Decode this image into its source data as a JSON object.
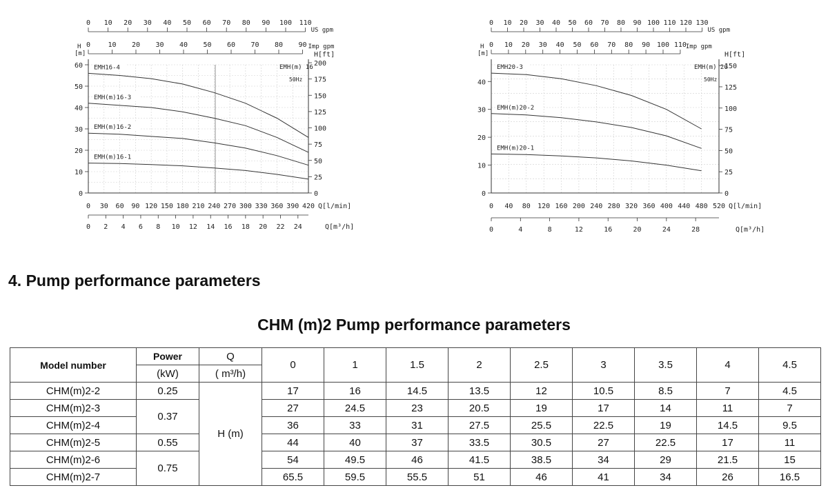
{
  "charts": [
    {
      "id": "left",
      "us_gpm_ticks": [
        "0",
        "10",
        "20",
        "30",
        "40",
        "50",
        "60",
        "70",
        "80",
        "90",
        "100",
        "110"
      ],
      "us_gpm_label": "US gpm",
      "imp_gpm_ticks": [
        "0",
        "10",
        "20",
        "30",
        "40",
        "50",
        "60",
        "70",
        "80",
        "90"
      ],
      "imp_gpm_label": "Imp gpm",
      "h_ft_label": "H[ft]",
      "h_label": "H",
      "m_label": "[m]",
      "h_ticks": [
        "0",
        "10",
        "20",
        "30",
        "40",
        "50",
        "60"
      ],
      "ft_ticks": [
        "0",
        "25",
        "50",
        "75",
        "100",
        "125",
        "150",
        "175",
        "200"
      ],
      "q_lmin_ticks": [
        "0",
        "30",
        "60",
        "90",
        "120",
        "150",
        "180",
        "210",
        "240",
        "270",
        "300",
        "330",
        "360",
        "390",
        "420"
      ],
      "q_lmin_label": "Q[l/min]",
      "q_m3h_ticks": [
        "0",
        "2",
        "4",
        "6",
        "8",
        "10",
        "12",
        "14",
        "16",
        "18",
        "20",
        "22",
        "24"
      ],
      "q_m3h_label": "Q[m³/h]",
      "model_label": "EMH(m) 16",
      "freq_label": "50Hz",
      "chart_data": {
        "type": "line",
        "xlabel": "Q[l/min]",
        "ylabel": "H [m]",
        "xlim": [
          0,
          420
        ],
        "ylim": [
          0,
          60
        ],
        "grid": true,
        "series": [
          {
            "name": "EMH16-4",
            "x": [
              0,
              60,
              120,
              180,
              240,
              300,
              360,
              420
            ],
            "y": [
              56,
              55,
              53.5,
              51,
              47,
              42,
              35,
              26
            ]
          },
          {
            "name": "EMH(m)16-3",
            "x": [
              0,
              60,
              120,
              180,
              240,
              300,
              360,
              420
            ],
            "y": [
              42,
              41,
              40,
              38,
              35,
              31.5,
              26,
              19
            ]
          },
          {
            "name": "EMH(m)16-2",
            "x": [
              0,
              60,
              120,
              180,
              240,
              300,
              360,
              420
            ],
            "y": [
              28,
              27.5,
              26.5,
              25.5,
              23.5,
              21,
              17.5,
              13
            ]
          },
          {
            "name": "EMH(m)16-1",
            "x": [
              0,
              60,
              120,
              180,
              240,
              300,
              360,
              420
            ],
            "y": [
              14,
              13.8,
              13.3,
              12.7,
              11.7,
              10.5,
              8.7,
              6.5
            ]
          }
        ]
      }
    },
    {
      "id": "right",
      "us_gpm_ticks": [
        "0",
        "10",
        "20",
        "30",
        "40",
        "50",
        "60",
        "70",
        "80",
        "90",
        "100",
        "110",
        "120",
        "130"
      ],
      "us_gpm_label": "US gpm",
      "imp_gpm_ticks": [
        "0",
        "10",
        "20",
        "30",
        "40",
        "50",
        "60",
        "70",
        "80",
        "90",
        "100",
        "110"
      ],
      "imp_gpm_label": "Imp gpm",
      "h_ft_label": "H[ft]",
      "h_label": "H",
      "m_label": "[m]",
      "h_ticks": [
        "0",
        "10",
        "20",
        "30",
        "40"
      ],
      "ft_ticks": [
        "0",
        "25",
        "50",
        "75",
        "100",
        "125",
        "150"
      ],
      "q_lmin_ticks": [
        "0",
        "40",
        "80",
        "120",
        "160",
        "200",
        "240",
        "280",
        "320",
        "360",
        "400",
        "440",
        "480",
        "520"
      ],
      "q_lmin_label": "Q[l/min]",
      "q_m3h_ticks": [
        "0",
        "4",
        "8",
        "12",
        "16",
        "20",
        "24",
        "28"
      ],
      "q_m3h_label": "Q[m³/h]",
      "model_label": "EMH(m) 20",
      "freq_label": "50Hz",
      "chart_data": {
        "type": "line",
        "xlabel": "Q[l/min]",
        "ylabel": "H [m]",
        "xlim": [
          0,
          520
        ],
        "ylim": [
          0,
          46
        ],
        "grid": true,
        "series": [
          {
            "name": "EMH20-3",
            "x": [
              0,
              80,
              160,
              240,
              320,
              400,
              480
            ],
            "y": [
              43,
              42.5,
              41,
              38.5,
              35,
              30,
              23
            ]
          },
          {
            "name": "EMH(m)20-2",
            "x": [
              0,
              80,
              160,
              240,
              320,
              400,
              480
            ],
            "y": [
              28.5,
              28,
              27,
              25.5,
              23.5,
              20.5,
              16
            ]
          },
          {
            "name": "EMH(m)20-1",
            "x": [
              0,
              80,
              160,
              240,
              320,
              400,
              480
            ],
            "y": [
              14,
              13.8,
              13.3,
              12.6,
              11.5,
              10,
              8
            ]
          }
        ]
      }
    }
  ],
  "section_title": "4. Pump performance parameters",
  "table_title": "CHM (m)2 Pump performance parameters",
  "table": {
    "model_header": "Model number",
    "power_header": "Power",
    "power_unit": "(kW)",
    "q_header": "Q",
    "q_unit": "( m³/h)",
    "h_label": "H (m)",
    "flows": [
      "0",
      "1",
      "1.5",
      "2",
      "2.5",
      "3",
      "3.5",
      "4",
      "4.5"
    ],
    "rows": [
      {
        "model": "CHM(m)2-2",
        "power": "0.25",
        "h": [
          "17",
          "16",
          "14.5",
          "13.5",
          "12",
          "10.5",
          "8.5",
          "7",
          "4.5"
        ]
      },
      {
        "model": "CHM(m)2-3",
        "power": "0.37",
        "h": [
          "27",
          "24.5",
          "23",
          "20.5",
          "19",
          "17",
          "14",
          "11",
          "7"
        ]
      },
      {
        "model": "CHM(m)2-4",
        "power": "",
        "h": [
          "36",
          "33",
          "31",
          "27.5",
          "25.5",
          "22.5",
          "19",
          "14.5",
          "9.5"
        ]
      },
      {
        "model": "CHM(m)2-5",
        "power": "0.55",
        "h": [
          "44",
          "40",
          "37",
          "33.5",
          "30.5",
          "27",
          "22.5",
          "17",
          "11"
        ]
      },
      {
        "model": "CHM(m)2-6",
        "power": "0.75",
        "h": [
          "54",
          "49.5",
          "46",
          "41.5",
          "38.5",
          "34",
          "29",
          "21.5",
          "15"
        ]
      },
      {
        "model": "CHM(m)2-7",
        "power": "",
        "h": [
          "65.5",
          "59.5",
          "55.5",
          "51",
          "46",
          "41",
          "34",
          "26",
          "16.5"
        ]
      }
    ]
  }
}
